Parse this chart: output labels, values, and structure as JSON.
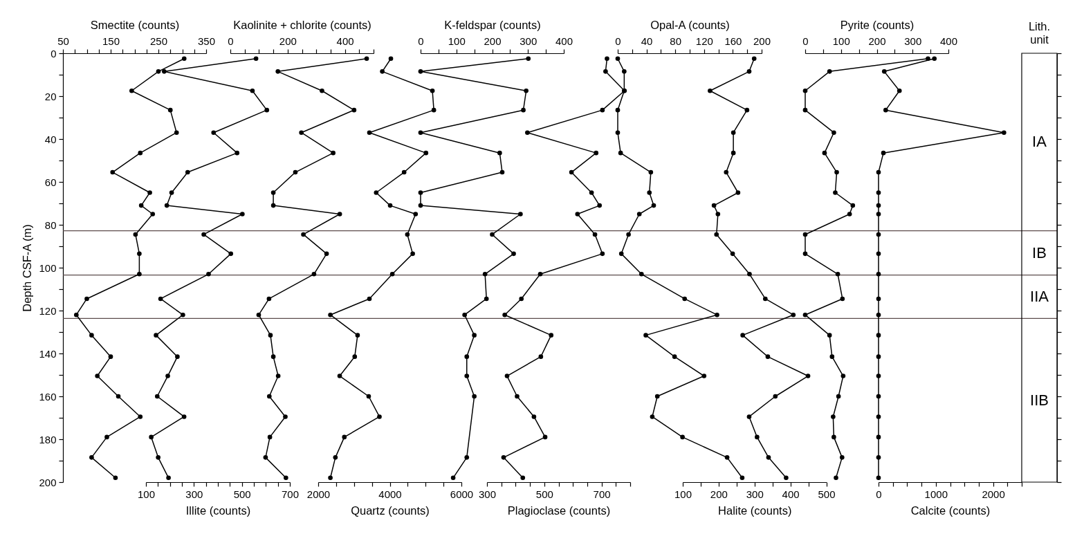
{
  "chart_data": [
    {
      "type": "line",
      "xlabel": "Smectite (counts)",
      "xlim": [
        50,
        350
      ],
      "xticks": [
        50,
        {
          "value": 75,
          "label": null
        },
        {
          "value": 100,
          "label": null
        },
        {
          "value": 125,
          "label": null
        },
        150,
        {
          "value": 175,
          "label": null
        },
        {
          "value": 200,
          "label": null
        },
        {
          "value": 225,
          "label": null
        },
        250,
        {
          "value": 275,
          "label": null
        },
        {
          "value": 300,
          "label": null
        },
        {
          "value": 325,
          "label": null
        },
        350
      ],
      "ylabel": "Depth CSF-A (m)",
      "ylim": [
        200,
        0
      ],
      "yticks": [
        0,
        {
          "value": 10,
          "label": null
        },
        20,
        {
          "value": 30,
          "label": null
        },
        40,
        {
          "value": 50,
          "label": null
        },
        60,
        {
          "value": 70,
          "label": null
        },
        80,
        {
          "value": 90,
          "label": null
        },
        100,
        {
          "value": 110,
          "label": null
        },
        120,
        {
          "value": 130,
          "label": null
        },
        140,
        {
          "value": 150,
          "label": null
        },
        160,
        {
          "value": 170,
          "label": null
        },
        180,
        {
          "value": 190,
          "label": null
        },
        200
      ],
      "marker": "circle",
      "annotations": [
        "Lith. unit",
        "IA",
        "IB",
        "IIA",
        "IIB"
      ],
      "ref_lines": [
        {
          "axis": "y",
          "value": 82.8,
          "color": "#5b4b4b"
        },
        {
          "axis": "y",
          "value": 103.4,
          "color": "#5b4b4b"
        },
        {
          "axis": "y",
          "value": 123.7,
          "color": "#5b4b4b"
        }
      ],
      "series": [
        {
          "color": "#000000",
          "x": [
            304,
            250,
            194,
            275,
            288,
            212,
            154,
            232,
            214,
            238,
            202,
            210,
            210,
            100,
            78,
            110,
            150,
            122,
            166,
            212,
            142,
            110,
            160
          ],
          "values": [
            2.5,
            8.5,
            17.5,
            26.5,
            37,
            46.5,
            55.5,
            65,
            71,
            75,
            84.5,
            93.5,
            103,
            114.5,
            122,
            131.5,
            141.5,
            150.5,
            160,
            169.5,
            179,
            188.5,
            198
          ]
        }
      ]
    },
    {
      "type": "line",
      "xlabel": "Illite (counts)",
      "xlim": [
        100,
        700
      ],
      "xticks": [
        100,
        {
          "value": 150,
          "label": null
        },
        {
          "value": 200,
          "label": null
        },
        {
          "value": 250,
          "label": null
        },
        300,
        {
          "value": 350,
          "label": null
        },
        {
          "value": 400,
          "label": null
        },
        {
          "value": 450,
          "label": null
        },
        500,
        {
          "value": 550,
          "label": null
        },
        {
          "value": 600,
          "label": null
        },
        {
          "value": 650,
          "label": null
        },
        700
      ],
      "ylim": [
        200,
        0
      ],
      "tick_labels": "x",
      "marker": "circle",
      "series": [
        {
          "color": "#000000",
          "x": [
            559,
            176,
            544,
            604,
            382,
            480,
            274,
            207,
            187,
            502,
            341,
            454,
            361,
            161,
            254,
            142,
            231,
            191,
            147,
            259,
            122,
            151,
            194
          ],
          "values": [
            2.5,
            8.5,
            17.5,
            26.5,
            37,
            46.5,
            55.5,
            65,
            71,
            75,
            84.5,
            93.5,
            103,
            114.5,
            122,
            131.5,
            141.5,
            150.5,
            160,
            169.5,
            179,
            188.5,
            198
          ]
        }
      ]
    },
    {
      "type": "line",
      "xlabel": "Kaolinite + chlorite (counts)",
      "xlim": [
        0,
        500
      ],
      "xticks": [
        0,
        {
          "value": 50,
          "label": null
        },
        {
          "value": 100,
          "label": null
        },
        {
          "value": 150,
          "label": null
        },
        200,
        {
          "value": 250,
          "label": null
        },
        {
          "value": 300,
          "label": null
        },
        {
          "value": 350,
          "label": null
        },
        400,
        {
          "value": 450,
          "label": null
        },
        {
          "value": 500,
          "label": null
        }
      ],
      "ylim": [
        200,
        0
      ],
      "tick_labels": "x",
      "marker": "circle",
      "series": [
        {
          "color": "#000000",
          "x": [
            476,
            166,
            320,
            432,
            248,
            359,
            227,
            150,
            150,
            382,
            255,
            336,
            292,
            135,
            99,
            140,
            150,
            167,
            136,
            192,
            138,
            123,
            194
          ],
          "values": [
            2.5,
            8.5,
            17.5,
            26.5,
            37,
            46.5,
            55.5,
            65,
            71,
            75,
            84.5,
            93.5,
            103,
            114.5,
            122,
            131.5,
            141.5,
            150.5,
            160,
            169.5,
            179,
            188.5,
            198
          ]
        }
      ]
    },
    {
      "type": "line",
      "xlabel": "Quartz (counts)",
      "xlim": [
        2000,
        6000
      ],
      "xticks": [
        2000,
        {
          "value": 2500,
          "label": null
        },
        {
          "value": 3000,
          "label": null
        },
        {
          "value": 3500,
          "label": null
        },
        4000,
        {
          "value": 4500,
          "label": null
        },
        {
          "value": 5000,
          "label": null
        },
        {
          "value": 5500,
          "label": null
        },
        6000
      ],
      "ylim": [
        200,
        0
      ],
      "tick_labels": "x",
      "marker": "circle",
      "series": [
        {
          "color": "#000000",
          "x": [
            4030,
            3790,
            5190,
            5230,
            3430,
            5010,
            4400,
            3620,
            4010,
            4720,
            4490,
            4640,
            4070,
            3430,
            2340,
            3100,
            3020,
            2600,
            3410,
            3710,
            2730,
            2480,
            2340
          ],
          "values": [
            2.5,
            8.5,
            17.5,
            26.5,
            37,
            46.5,
            55.5,
            65,
            71,
            75,
            84.5,
            93.5,
            103,
            114.5,
            122,
            131.5,
            141.5,
            150.5,
            160,
            169.5,
            179,
            188.5,
            198
          ]
        }
      ]
    },
    {
      "type": "line",
      "xlabel": "K-feldspar (counts)",
      "xlim": [
        0,
        400
      ],
      "xticks": [
        0,
        {
          "value": 50,
          "label": null
        },
        100,
        {
          "value": 150,
          "label": null
        },
        200,
        {
          "value": 250,
          "label": null
        },
        300,
        {
          "value": 350,
          "label": null
        },
        400
      ],
      "ylim": [
        200,
        0
      ],
      "tick_labels": "x",
      "marker": "circle",
      "series": [
        {
          "color": "#000000",
          "x": [
            301,
            0,
            295,
            287,
            0,
            221,
            228,
            0,
            0,
            279,
            200,
            260,
            180,
            184,
            123,
            150,
            129,
            129,
            150,
            129,
            91
          ],
          "values": [
            2.5,
            8.5,
            17.5,
            26.5,
            37,
            46.5,
            55.5,
            65,
            71,
            75,
            84.5,
            93.5,
            103,
            114.5,
            122,
            131.5,
            141.5,
            150.5,
            160,
            188.5,
            198
          ]
        }
      ]
    },
    {
      "type": "line",
      "xlabel": "Plagioclase (counts)",
      "xlim": [
        300,
        800
      ],
      "xticks": [
        300,
        {
          "value": 350,
          "label": null
        },
        {
          "value": 400,
          "label": null
        },
        {
          "value": 450,
          "label": null
        },
        500,
        {
          "value": 550,
          "label": null
        },
        {
          "value": 600,
          "label": null
        },
        {
          "value": 650,
          "label": null
        },
        700,
        {
          "value": 750,
          "label": null
        },
        {
          "value": 800,
          "label": null
        }
      ],
      "ylim": [
        200,
        0
      ],
      "tick_labels": "x",
      "marker": "circle",
      "series": [
        {
          "color": "#000000",
          "x": [
            719,
            714,
            780,
            703,
            441,
            681,
            595,
            665,
            693,
            616,
            677,
            703,
            486,
            420,
            362,
            524,
            488,
            370,
            405,
            464,
            503,
            358,
            425
          ],
          "values": [
            2.5,
            8.5,
            17.5,
            26.5,
            37,
            46.5,
            55.5,
            65,
            71,
            75,
            84.5,
            93.5,
            103,
            114.5,
            122,
            131.5,
            141.5,
            150.5,
            160,
            169.5,
            179,
            188.5,
            198
          ]
        }
      ]
    },
    {
      "type": "line",
      "xlabel": "Opal-A (counts)",
      "xlim": [
        0,
        200
      ],
      "xticks": [
        0,
        {
          "value": 20,
          "label": null
        },
        40,
        {
          "value": 60,
          "label": null
        },
        80,
        {
          "value": 100,
          "label": null
        },
        120,
        {
          "value": 140,
          "label": null
        },
        160,
        {
          "value": 180,
          "label": null
        },
        200
      ],
      "ylim": [
        200,
        0
      ],
      "tick_labels": "x",
      "marker": "circle",
      "series": [
        {
          "color": "#000000",
          "x": [
            0,
            9,
            9,
            0,
            0,
            4,
            46,
            44,
            50,
            30,
            15,
            5,
            33,
            93,
            138,
            39,
            79,
            120,
            55,
            48,
            90,
            152,
            173
          ],
          "values": [
            2.5,
            8.5,
            17.5,
            26.5,
            37,
            46.5,
            55.5,
            65,
            71,
            75,
            84.5,
            93.5,
            103,
            114.5,
            122,
            131.5,
            141.5,
            150.5,
            160,
            169.5,
            179,
            188.5,
            198
          ]
        }
      ]
    },
    {
      "type": "line",
      "xlabel": "Halite (counts)",
      "xlim": [
        100,
        500
      ],
      "xticks": [
        100,
        {
          "value": 150,
          "label": null
        },
        200,
        {
          "value": 250,
          "label": null
        },
        300,
        {
          "value": 350,
          "label": null
        },
        400,
        {
          "value": 450,
          "label": null
        },
        500
      ],
      "ylim": [
        200,
        0
      ],
      "tick_labels": "x",
      "marker": "circle",
      "series": [
        {
          "color": "#000000",
          "x": [
            299,
            285,
            176,
            279,
            241,
            241,
            221,
            254,
            187,
            198,
            194,
            239,
            286,
            330,
            408,
            267,
            337,
            449,
            358,
            285,
            307,
            339,
            388
          ],
          "values": [
            2.5,
            8.5,
            17.5,
            26.5,
            37,
            46.5,
            55.5,
            65,
            71,
            75,
            84.5,
            93.5,
            103,
            114.5,
            122,
            131.5,
            141.5,
            150.5,
            160,
            169.5,
            179,
            188.5,
            198
          ]
        }
      ]
    },
    {
      "type": "line",
      "xlabel": "Pyrite (counts)",
      "xlim": [
        0,
        400
      ],
      "xticks": [
        0,
        {
          "value": 50,
          "label": null
        },
        100,
        {
          "value": 150,
          "label": null
        },
        200,
        {
          "value": 250,
          "label": null
        },
        300,
        {
          "value": 350,
          "label": null
        },
        400
      ],
      "ylim": [
        200,
        0
      ],
      "tick_labels": "x",
      "marker": "circle",
      "series": [
        {
          "color": "#000000",
          "x": [
            343,
            68,
            0,
            0,
            80,
            54,
            88,
            84,
            133,
            124,
            0,
            0,
            91,
            104,
            0,
            68,
            75,
            106,
            93,
            78,
            80,
            103,
            86
          ],
          "values": [
            2.5,
            8.5,
            17.5,
            26.5,
            37,
            46.5,
            55.5,
            65,
            71,
            75,
            84.5,
            93.5,
            103,
            114.5,
            122,
            131.5,
            141.5,
            150.5,
            160,
            169.5,
            179,
            188.5,
            198
          ]
        }
      ]
    },
    {
      "type": "line",
      "xlabel": "Calcite (counts)",
      "xlim": [
        0,
        2500
      ],
      "xticks": [
        0,
        {
          "value": 250,
          "label": null
        },
        {
          "value": 500,
          "label": null
        },
        {
          "value": 750,
          "label": null
        },
        1000,
        {
          "value": 1250,
          "label": null
        },
        {
          "value": 1500,
          "label": null
        },
        {
          "value": 1750,
          "label": null
        },
        2000,
        {
          "value": 2250,
          "label": null
        },
        {
          "value": 2500,
          "label": null
        }
      ],
      "ylim": [
        200,
        0
      ],
      "tick_labels": "x",
      "marker": "circle",
      "series": [
        {
          "color": "#000000",
          "x": [
            975,
            100,
            365,
            125,
            2190,
            85,
            0,
            0,
            0,
            0,
            0,
            0,
            0,
            0,
            0,
            0,
            0,
            0,
            0,
            0,
            0,
            0,
            0
          ],
          "values": [
            2.5,
            8.5,
            17.5,
            26.5,
            37,
            46.5,
            55.5,
            65,
            71,
            75,
            84.5,
            93.5,
            103,
            114.5,
            122,
            131.5,
            141.5,
            150.5,
            160,
            169.5,
            179,
            188.5,
            198
          ]
        }
      ]
    }
  ]
}
